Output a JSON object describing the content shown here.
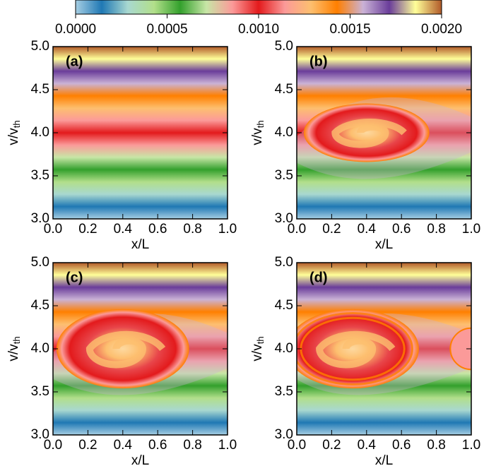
{
  "chart_data": {
    "type": "heatmap",
    "colorbar": {
      "colors": [
        "#a6cee3",
        "#1f78b4",
        "#a8d8d0",
        "#b2df8a",
        "#33a02c",
        "#c7e6a6",
        "#fb9a99",
        "#e31a1c",
        "#fb9a99",
        "#fdbf6f",
        "#ff7f00",
        "#cab2d6",
        "#6a3d9a",
        "#ffff99",
        "#b15928"
      ],
      "lim": [
        0,
        0.002
      ],
      "ticks": [
        {
          "value": 0,
          "label": "0.0000"
        },
        0.0005,
        {
          "value": 0.001,
          "label": "0.0010"
        },
        {
          "value": 0.0015,
          "label": "0.0015"
        },
        {
          "value": 0.002,
          "label": "0.0020"
        }
      ]
    },
    "panels": [
      {
        "label": "(a)"
      },
      {
        "label": "(b)"
      },
      {
        "label": "(c)"
      },
      {
        "label": "(d)"
      }
    ],
    "xlabel": "x/L",
    "ylabel": {
      "main": "v/v",
      "sub": "th"
    },
    "xlim": [
      0,
      1
    ],
    "ylim": [
      3,
      5
    ],
    "xticks": [
      {
        "value": 0,
        "label": "0.0"
      },
      0.2,
      0.4,
      0.6,
      0.8,
      {
        "value": 1,
        "label": "1.0"
      }
    ],
    "yticks": [
      {
        "value": 3,
        "label": "3.0"
      },
      3.5,
      {
        "value": 4,
        "label": "4.0"
      },
      4.5,
      {
        "value": 5,
        "label": "5.0"
      }
    ]
  }
}
